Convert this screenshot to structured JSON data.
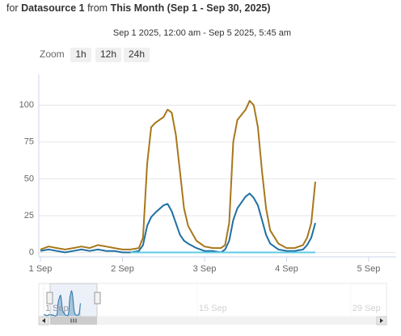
{
  "header": {
    "prefix": "for",
    "source": "Datasource 1",
    "middle": "from",
    "range": "This Month (Sep 1 - Sep 30, 2025)"
  },
  "zoom": {
    "label": "Zoom",
    "buttons": [
      "1h",
      "12h",
      "24h"
    ]
  },
  "chart_data": {
    "type": "line",
    "subtitle": "Sep 1 2025, 12:00 am - Sep 5 2025, 5:45 am",
    "x": [
      0,
      0.1,
      0.2,
      0.3,
      0.4,
      0.5,
      0.6,
      0.7,
      0.8,
      0.9,
      1.0,
      1.1,
      1.2,
      1.25,
      1.3,
      1.35,
      1.4,
      1.5,
      1.55,
      1.6,
      1.65,
      1.7,
      1.75,
      1.8,
      1.9,
      2.0,
      2.1,
      2.2,
      2.25,
      2.3,
      2.35,
      2.4,
      2.5,
      2.55,
      2.6,
      2.65,
      2.7,
      2.75,
      2.8,
      2.9,
      3.0,
      3.1,
      3.2,
      3.25,
      3.3,
      3.35
    ],
    "series": [
      {
        "color": "#a8771a",
        "values": [
          2,
          4,
          3,
          2,
          3,
          4,
          3,
          5,
          4,
          3,
          2,
          2,
          3,
          10,
          60,
          85,
          88,
          92,
          97,
          95,
          80,
          55,
          30,
          18,
          8,
          4,
          3,
          3,
          5,
          20,
          75,
          90,
          97,
          103,
          100,
          85,
          55,
          30,
          15,
          6,
          3,
          3,
          5,
          10,
          20,
          48
        ]
      },
      {
        "color": "#1f6fa3",
        "values": [
          1,
          2,
          1,
          0,
          1,
          2,
          1,
          2,
          1,
          1,
          0,
          0,
          1,
          5,
          18,
          24,
          27,
          32,
          33,
          28,
          20,
          12,
          8,
          6,
          3,
          1,
          1,
          0,
          2,
          8,
          22,
          30,
          38,
          40,
          37,
          32,
          22,
          12,
          6,
          2,
          1,
          1,
          2,
          5,
          10,
          20
        ]
      },
      {
        "color": "#5ccbe6",
        "values": [
          null,
          null,
          null,
          null,
          null,
          null,
          null,
          null,
          null,
          null,
          null,
          0,
          0,
          0,
          0,
          0,
          0,
          0,
          0,
          0,
          0,
          0,
          0,
          0,
          0,
          0,
          0,
          0,
          0,
          0,
          0,
          0,
          0,
          0,
          0,
          0,
          0,
          0,
          0,
          0,
          0,
          0,
          0,
          0,
          0,
          0
        ]
      }
    ],
    "xlim": [
      -0.02,
      4.335
    ],
    "xticks": [
      {
        "value": 0,
        "label": "1 Sep"
      },
      {
        "value": 1,
        "label": "2 Sep"
      },
      {
        "value": 2,
        "label": "3 Sep"
      },
      {
        "value": 3,
        "label": "4 Sep"
      },
      {
        "value": 4,
        "label": "5 Sep"
      }
    ],
    "ylim": [
      -3,
      121
    ],
    "yticks": [
      0,
      25,
      50,
      75,
      100
    ],
    "grid": true,
    "navigator": {
      "series": 1,
      "xlim": [
        -0.44,
        31.25
      ],
      "xticks": [
        {
          "value": 0,
          "label": "1 Sep"
        },
        {
          "value": 14,
          "label": "15 Sep"
        },
        {
          "value": 28,
          "label": "29 Sep"
        }
      ]
    }
  }
}
